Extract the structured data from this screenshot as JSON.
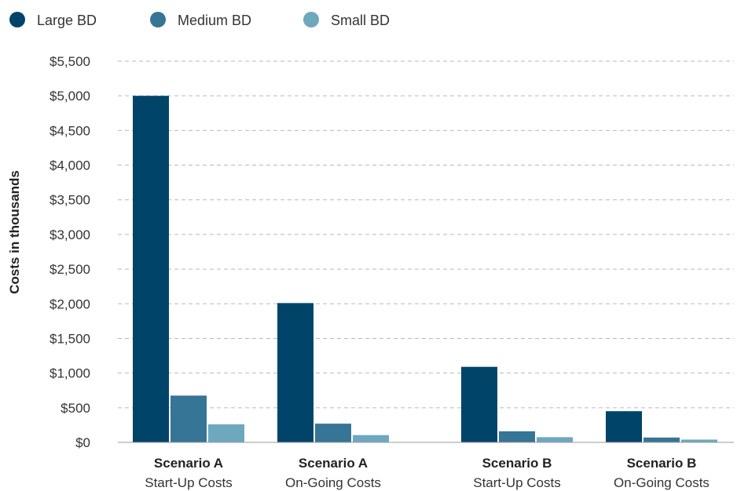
{
  "chart_data": {
    "type": "bar",
    "ylabel": "Costs in thousands",
    "ylim": [
      0,
      5500
    ],
    "yticks": [
      "$0",
      "$500",
      "$1,000",
      "$1,500",
      "$2,000",
      "$2,500",
      "$3,000",
      "$3,500",
      "$4,000",
      "$4,500",
      "$5,000",
      "$5,500"
    ],
    "grid": true,
    "legend_position": "top-left",
    "categories": [
      {
        "title": "Scenario A",
        "subtitle": "Start-Up Costs"
      },
      {
        "title": "Scenario A",
        "subtitle": "On-Going Costs"
      },
      {
        "title": "Scenario B",
        "subtitle": "Start-Up Costs"
      },
      {
        "title": "Scenario B",
        "subtitle": "On-Going Costs"
      }
    ],
    "series": [
      {
        "name": "Large BD",
        "color": "#00446a",
        "values": [
          5000,
          2010,
          1090,
          450
        ]
      },
      {
        "name": "Medium BD",
        "color": "#367596",
        "values": [
          675,
          270,
          160,
          70
        ]
      },
      {
        "name": "Small BD",
        "color": "#6ea8bf",
        "values": [
          260,
          105,
          75,
          40
        ]
      }
    ]
  }
}
